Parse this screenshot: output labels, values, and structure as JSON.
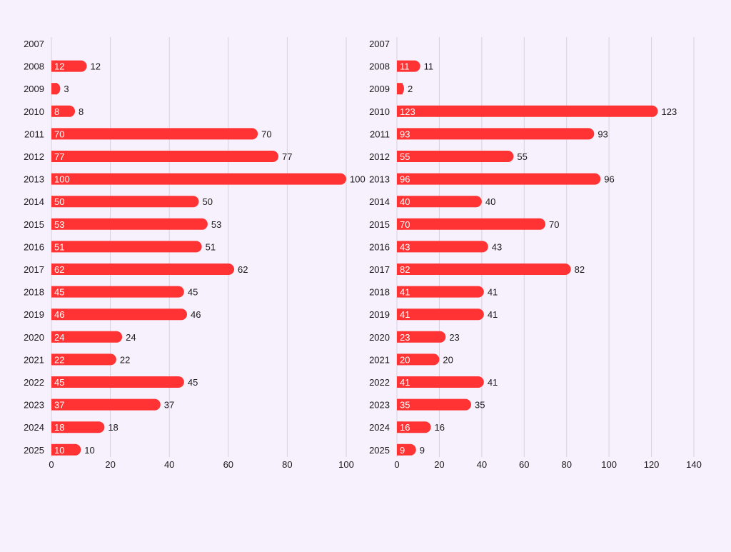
{
  "colors": {
    "background": "#f7f0fd",
    "bar": "#ff3333",
    "grid": "#d8d0e0",
    "axis_text": "#1a1a1a",
    "inside_label": "#ffffff"
  },
  "chart_data": [
    {
      "type": "bar",
      "orientation": "horizontal",
      "title": "",
      "xlabel": "",
      "ylabel": "",
      "xlim": [
        0,
        100
      ],
      "xticks": [
        0,
        20,
        40,
        60,
        80,
        100
      ],
      "grid": true,
      "categories": [
        "2007",
        "2008",
        "2009",
        "2010",
        "2011",
        "2012",
        "2013",
        "2014",
        "2015",
        "2016",
        "2017",
        "2018",
        "2019",
        "2020",
        "2021",
        "2022",
        "2023",
        "2024",
        "2025"
      ],
      "values": [
        null,
        12,
        3,
        8,
        70,
        77,
        100,
        50,
        53,
        51,
        62,
        45,
        46,
        24,
        22,
        45,
        37,
        18,
        10
      ]
    },
    {
      "type": "bar",
      "orientation": "horizontal",
      "title": "",
      "xlabel": "",
      "ylabel": "",
      "xlim": [
        0,
        140
      ],
      "xticks": [
        0,
        20,
        40,
        60,
        80,
        100,
        120,
        140
      ],
      "grid": true,
      "categories": [
        "2007",
        "2008",
        "2009",
        "2010",
        "2011",
        "2012",
        "2013",
        "2014",
        "2015",
        "2016",
        "2017",
        "2018",
        "2019",
        "2020",
        "2021",
        "2022",
        "2023",
        "2024",
        "2025"
      ],
      "values": [
        null,
        11,
        2,
        123,
        93,
        55,
        96,
        40,
        70,
        43,
        82,
        41,
        41,
        23,
        20,
        41,
        35,
        16,
        9
      ]
    }
  ]
}
